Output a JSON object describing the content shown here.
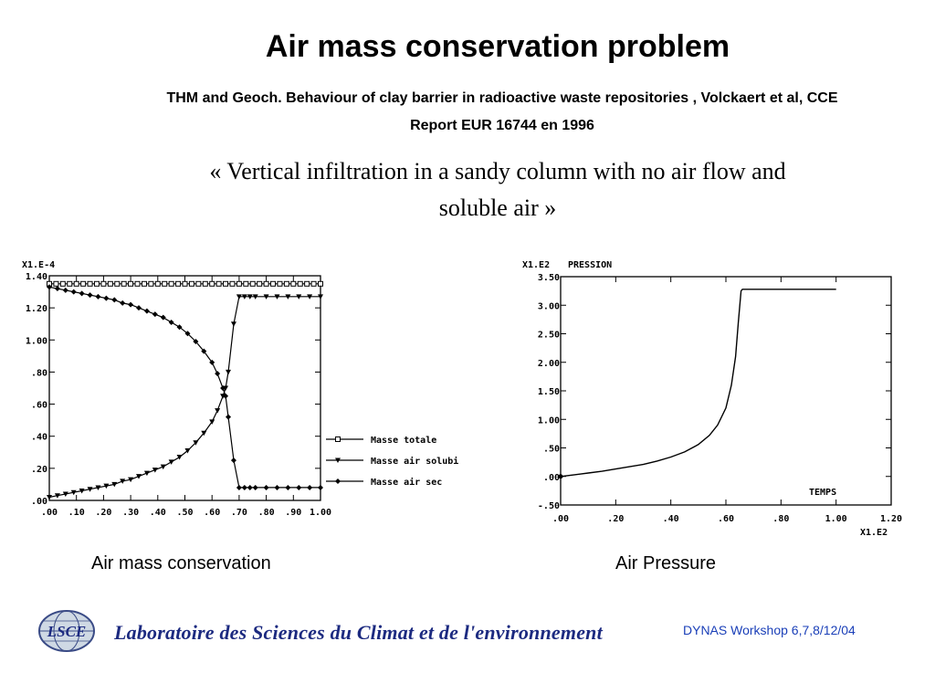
{
  "slide": {
    "title": "Air mass conservation problem",
    "reference_line1": "THM and Geoch. Behaviour of clay barrier in radioactive waste repositories , Volckaert et al, CCE",
    "reference_line2": "Report EUR 16744 en 1996",
    "quote_line1": "« Vertical infiltration in a sandy column with no air flow and",
    "quote_line2": "soluble air »",
    "caption_left": "Air mass conservation",
    "caption_right": "Air Pressure",
    "lab_name": "Laboratoire des Sciences du Climat et de l'environnement",
    "logo_text": "LSCE",
    "footer": "DYNAS Workshop 6,7,8/12/04"
  },
  "colors": {
    "footer": "#1a3fb8",
    "lab_name": "#1c2a80",
    "logo_globe": "#cfd9e4"
  },
  "chart_data": [
    {
      "type": "line",
      "multiplier_label": "X1.E-4",
      "ylim": [
        0,
        1.4
      ],
      "y_ticks": [
        "1.40",
        "1.20",
        "1.00",
        ".80",
        ".60",
        ".40",
        ".20",
        ".00"
      ],
      "xlim": [
        0,
        1.0
      ],
      "x_ticks": [
        ".00",
        ".10",
        ".20",
        ".30",
        ".40",
        ".50",
        ".60",
        ".70",
        ".80",
        ".90",
        "1.00"
      ],
      "series": [
        {
          "name": "Masse totale",
          "marker": "square",
          "x": [
            0.0,
            0.025,
            0.05,
            0.075,
            0.1,
            0.125,
            0.15,
            0.175,
            0.2,
            0.225,
            0.25,
            0.275,
            0.3,
            0.325,
            0.35,
            0.375,
            0.4,
            0.425,
            0.45,
            0.475,
            0.5,
            0.525,
            0.55,
            0.575,
            0.6,
            0.625,
            0.65,
            0.675,
            0.7,
            0.725,
            0.75,
            0.775,
            0.8,
            0.825,
            0.85,
            0.875,
            0.9,
            0.925,
            0.95,
            0.975,
            1.0
          ],
          "y": [
            1.35,
            1.35,
            1.35,
            1.35,
            1.35,
            1.35,
            1.35,
            1.35,
            1.35,
            1.35,
            1.35,
            1.35,
            1.35,
            1.35,
            1.35,
            1.35,
            1.35,
            1.35,
            1.35,
            1.35,
            1.35,
            1.35,
            1.35,
            1.35,
            1.35,
            1.35,
            1.35,
            1.35,
            1.35,
            1.35,
            1.35,
            1.35,
            1.35,
            1.35,
            1.35,
            1.35,
            1.35,
            1.35,
            1.35,
            1.35,
            1.35
          ]
        },
        {
          "name": "Masse  air solubi",
          "marker": "triangle",
          "x": [
            0.0,
            0.03,
            0.06,
            0.09,
            0.12,
            0.15,
            0.18,
            0.21,
            0.24,
            0.27,
            0.3,
            0.33,
            0.36,
            0.39,
            0.42,
            0.45,
            0.48,
            0.51,
            0.54,
            0.57,
            0.6,
            0.62,
            0.64,
            0.65,
            0.66,
            0.68,
            0.7,
            0.72,
            0.74,
            0.76,
            0.8,
            0.84,
            0.88,
            0.92,
            0.96,
            1.0
          ],
          "y": [
            0.02,
            0.03,
            0.04,
            0.05,
            0.06,
            0.07,
            0.08,
            0.09,
            0.1,
            0.12,
            0.13,
            0.15,
            0.17,
            0.19,
            0.21,
            0.24,
            0.27,
            0.31,
            0.36,
            0.42,
            0.49,
            0.56,
            0.65,
            0.7,
            0.8,
            1.1,
            1.27,
            1.27,
            1.27,
            1.27,
            1.27,
            1.27,
            1.27,
            1.27,
            1.27,
            1.27
          ]
        },
        {
          "name": "Masse air sec",
          "marker": "diamond",
          "x": [
            0.0,
            0.03,
            0.06,
            0.09,
            0.12,
            0.15,
            0.18,
            0.21,
            0.24,
            0.27,
            0.3,
            0.33,
            0.36,
            0.39,
            0.42,
            0.45,
            0.48,
            0.51,
            0.54,
            0.57,
            0.6,
            0.62,
            0.64,
            0.65,
            0.66,
            0.68,
            0.7,
            0.72,
            0.74,
            0.76,
            0.8,
            0.84,
            0.88,
            0.92,
            0.96,
            1.0
          ],
          "y": [
            1.33,
            1.32,
            1.31,
            1.3,
            1.29,
            1.28,
            1.27,
            1.26,
            1.25,
            1.23,
            1.22,
            1.2,
            1.18,
            1.16,
            1.14,
            1.11,
            1.08,
            1.04,
            0.99,
            0.93,
            0.86,
            0.79,
            0.7,
            0.65,
            0.52,
            0.25,
            0.08,
            0.08,
            0.08,
            0.08,
            0.08,
            0.08,
            0.08,
            0.08,
            0.08,
            0.08
          ]
        }
      ],
      "legend_position": "right"
    },
    {
      "type": "line",
      "multiplier_label": "X1.E2",
      "ylabel": "PRESSION",
      "xlabel": "TEMPS",
      "x_multiplier_label": "X1.E2",
      "ylim": [
        -0.5,
        3.5
      ],
      "y_ticks": [
        "3.50",
        "3.00",
        "2.50",
        "2.00",
        "1.50",
        "1.00",
        ".50",
        ".00",
        "-.50"
      ],
      "xlim": [
        0,
        1.2
      ],
      "x_ticks": [
        ".00",
        ".20",
        ".40",
        ".60",
        ".80",
        "1.00",
        "1.20"
      ],
      "series": [
        {
          "x": [
            0.0,
            0.05,
            0.1,
            0.15,
            0.2,
            0.25,
            0.3,
            0.35,
            0.4,
            0.45,
            0.5,
            0.54,
            0.57,
            0.6,
            0.62,
            0.635,
            0.645,
            0.655,
            0.66,
            0.7,
            0.8,
            0.9,
            1.0
          ],
          "y": [
            0.0,
            0.03,
            0.06,
            0.09,
            0.13,
            0.17,
            0.21,
            0.27,
            0.34,
            0.43,
            0.56,
            0.72,
            0.9,
            1.2,
            1.6,
            2.1,
            2.7,
            3.25,
            3.28,
            3.28,
            3.28,
            3.28,
            3.28
          ]
        }
      ]
    }
  ]
}
